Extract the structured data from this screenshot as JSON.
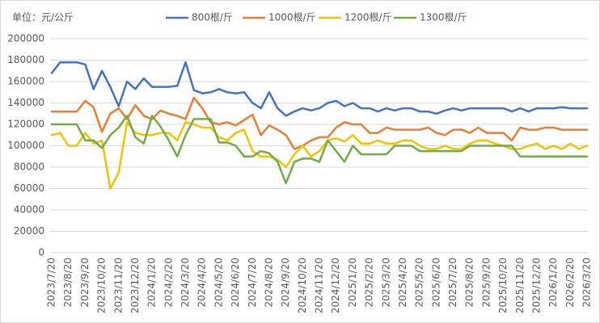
{
  "chart_data": {
    "type": "line",
    "ylabel": "单位：元/公斤",
    "legend": "top",
    "grid": true,
    "ylim": [
      0,
      200000
    ],
    "yticks": [
      0,
      20000,
      40000,
      60000,
      80000,
      100000,
      120000,
      140000,
      160000,
      180000,
      200000
    ],
    "categories": [
      "2023/7/20",
      null,
      "2023/8/20",
      null,
      "2023/9/20",
      null,
      "2023/10/20",
      null,
      "2023/11/20",
      null,
      "2023/12/20",
      null,
      "2024/1/20",
      null,
      "2024/2/20",
      null,
      "2024/3/20",
      null,
      "2024/4/20",
      null,
      "2024/5/20",
      null,
      "2024/6/20",
      null,
      "2024/7/20",
      null,
      "2024/8/20",
      null,
      "2024/9/20",
      null,
      "2024/10/20",
      null,
      "2024/11/20",
      null,
      "2024/12/20",
      null,
      "2025/1/20",
      null,
      "2025/2/20",
      null,
      "2025/3/20",
      null,
      "2025/4/20",
      null,
      "2025/5/20",
      null,
      "2025/6/20",
      null,
      "2025/7/20",
      null,
      "2025/8/20",
      null,
      "2025/9/20",
      null,
      "2025/10/20",
      null,
      "2025/11/20",
      null,
      "2025/12/20",
      null,
      "2026/1/20",
      null,
      "2026/2/20",
      null,
      "2026/3/20"
    ],
    "series": [
      {
        "name": "800根/斤",
        "color": "#4472c4",
        "values": [
          168000,
          178000,
          178000,
          178000,
          176000,
          153000,
          170000,
          155000,
          137000,
          160000,
          153000,
          163000,
          155000,
          155000,
          155000,
          156000,
          178000,
          152000,
          149000,
          150000,
          153000,
          150000,
          149000,
          150000,
          140000,
          135000,
          150000,
          135000,
          128000,
          132000,
          135000,
          133000,
          135000,
          140000,
          142000,
          137000,
          140000,
          135000,
          135000,
          132000,
          135000,
          133000,
          135000,
          135000,
          132000,
          132000,
          130000,
          133000,
          135000,
          133000,
          135000,
          135000,
          135000,
          135000,
          135000,
          132000,
          135000,
          132000,
          135000,
          135000,
          135000,
          136000,
          135000,
          135000,
          135000
        ]
      },
      {
        "name": "1000根/斤",
        "color": "#ed7d31",
        "values": [
          132000,
          132000,
          132000,
          132000,
          142000,
          136000,
          113000,
          130000,
          135000,
          125000,
          138000,
          128000,
          125000,
          133000,
          130000,
          128000,
          125000,
          145000,
          135000,
          122000,
          120000,
          122000,
          119000,
          124000,
          129000,
          110000,
          119000,
          115000,
          110000,
          97000,
          100000,
          105000,
          108000,
          108000,
          117000,
          122000,
          120000,
          120000,
          112000,
          112000,
          117000,
          115000,
          115000,
          115000,
          115000,
          117000,
          112000,
          110000,
          115000,
          115000,
          112000,
          117000,
          112000,
          112000,
          112000,
          105000,
          117000,
          115000,
          115000,
          117000,
          117000,
          115000,
          115000,
          115000,
          115000
        ]
      },
      {
        "name": "1200根/斤",
        "color": "#f2c300",
        "values": [
          110000,
          112000,
          100000,
          100000,
          112000,
          102000,
          105000,
          60000,
          75000,
          122000,
          112000,
          110000,
          110000,
          112000,
          112000,
          105000,
          122000,
          120000,
          117000,
          117000,
          108000,
          105000,
          112000,
          115000,
          95000,
          90000,
          90000,
          87000,
          80000,
          92000,
          100000,
          90000,
          95000,
          105000,
          107000,
          104000,
          110000,
          102000,
          102000,
          105000,
          102000,
          102000,
          105000,
          105000,
          100000,
          97000,
          97000,
          100000,
          97000,
          97000,
          102000,
          105000,
          105000,
          102000,
          100000,
          97000,
          97000,
          100000,
          102000,
          97000,
          100000,
          97000,
          102000,
          97000,
          100000
        ]
      },
      {
        "name": "1300根/斤",
        "color": "#70ad47",
        "values": [
          120000,
          120000,
          120000,
          120000,
          105000,
          105000,
          98000,
          110000,
          117000,
          128000,
          108000,
          102000,
          128000,
          118000,
          105000,
          90000,
          110000,
          125000,
          125000,
          125000,
          103000,
          103000,
          100000,
          90000,
          90000,
          95000,
          93000,
          85000,
          65000,
          85000,
          88000,
          88000,
          85000,
          105000,
          95000,
          85000,
          100000,
          92000,
          92000,
          92000,
          92000,
          100000,
          100000,
          100000,
          95000,
          95000,
          95000,
          95000,
          95000,
          95000,
          100000,
          100000,
          100000,
          100000,
          100000,
          100000,
          90000,
          90000,
          90000,
          90000,
          90000,
          90000,
          90000,
          90000,
          90000
        ]
      }
    ]
  }
}
